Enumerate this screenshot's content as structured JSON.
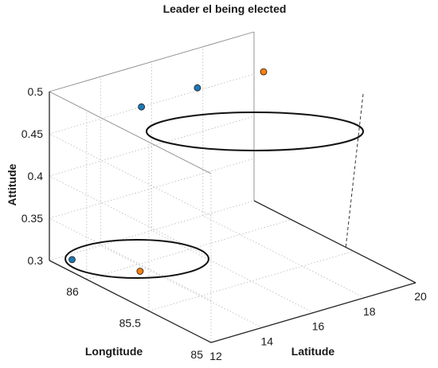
{
  "chart_data": {
    "type": "scatter",
    "title": "Leader el being elected",
    "xlabel": "Latitude",
    "ylabel": "Longtitude",
    "zlabel": "Attitude",
    "xlim": [
      12,
      20
    ],
    "ylim": [
      85,
      86.3
    ],
    "zlim": [
      0.3,
      0.5
    ],
    "xticks": [
      "12",
      "14",
      "16",
      "18",
      "20"
    ],
    "yticks": [
      "85",
      "85.5",
      "86"
    ],
    "zticks": [
      "0.3",
      "0.35",
      "0.4",
      "0.45",
      "0.5"
    ],
    "grid": true,
    "colors": {
      "blue": "#1f77b4",
      "orange": "#ff7f0e"
    },
    "series": [
      {
        "color": "blue",
        "points": [
          {
            "x": 12.4,
            "y": 86.2,
            "z": 0.305
          },
          {
            "x": 15.6,
            "y": 86.3,
            "z": 0.45
          },
          {
            "x": 17.3,
            "y": 86.2,
            "z": 0.465
          }
        ]
      },
      {
        "color": "orange",
        "points": [
          {
            "x": 13.6,
            "y": 85.9,
            "z": 0.303
          },
          {
            "x": 19.4,
            "y": 86.1,
            "z": 0.473
          }
        ]
      }
    ],
    "annotations": [
      {
        "shape": "ellipse",
        "label": "",
        "encloses": "lower cluster"
      },
      {
        "shape": "ellipse",
        "label": "",
        "encloses": "upper cluster"
      }
    ]
  }
}
